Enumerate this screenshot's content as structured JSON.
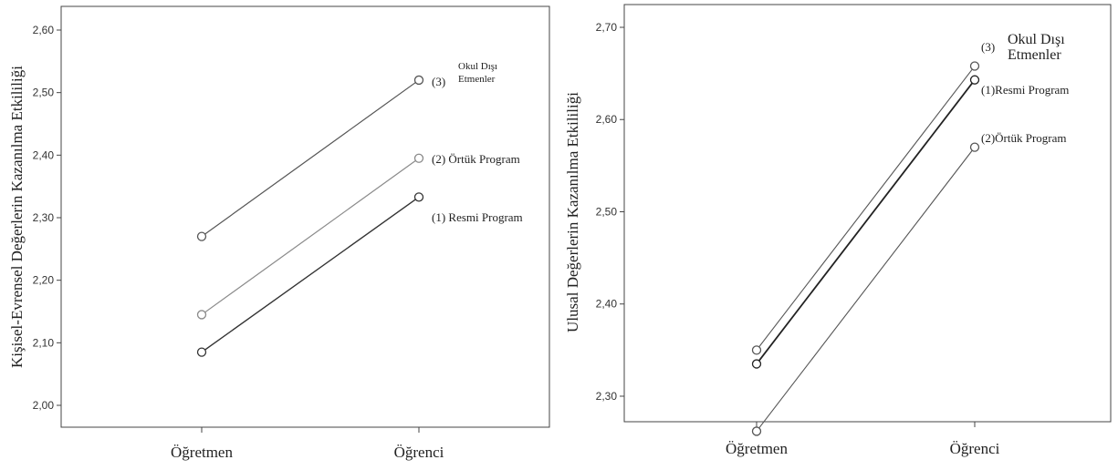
{
  "chart_data": [
    {
      "type": "line",
      "title": "",
      "xlabel": "",
      "ylabel": "Kişisel-Evrensel Değerlerin Kazanılma Etkililiği",
      "categories": [
        "Öğretmen",
        "Öğrenci"
      ],
      "ylim": [
        2.0,
        2.6
      ],
      "yticks": [
        "2,00",
        "2,10",
        "2,20",
        "2,30",
        "2,40",
        "2,50",
        "2,60"
      ],
      "yticks_values": [
        2.0,
        2.1,
        2.2,
        2.3,
        2.4,
        2.5,
        2.6
      ],
      "grid": false,
      "series": [
        {
          "name": "(3) Okul Dışı Etmenler",
          "values": [
            2.27,
            2.52
          ],
          "color": "#555555"
        },
        {
          "name": "(2) Örtük Program",
          "values": [
            2.145,
            2.395
          ],
          "color": "#8a8a8a"
        },
        {
          "name": "(1) Resmi Program",
          "values": [
            2.085,
            2.333
          ],
          "color": "#333333"
        }
      ]
    },
    {
      "type": "line",
      "title": "",
      "xlabel": "",
      "ylabel": "Ulusal Değerlerin Kazanılma Etkililiği",
      "categories": [
        "Öğretmen",
        "Öğrenci"
      ],
      "ylim": [
        2.25,
        2.7
      ],
      "yticks": [
        "2,30",
        "2,40",
        "2,50",
        "2,60",
        "2,70"
      ],
      "yticks_values": [
        2.3,
        2.4,
        2.5,
        2.6,
        2.7
      ],
      "grid": false,
      "series": [
        {
          "name": "(3) Okul Dışı Etmenler",
          "values": [
            2.35,
            2.658
          ],
          "color": "#555555"
        },
        {
          "name": "(1)Resmi Program",
          "values": [
            2.335,
            2.643
          ],
          "color": "#222222"
        },
        {
          "name": "(2)Örtük Program",
          "values": [
            2.262,
            2.57
          ],
          "color": "#555555"
        }
      ]
    }
  ],
  "labels": {
    "left": {
      "okul_num": "(3)",
      "okul_line1": "Okul Dışı",
      "okul_line2": "Etmenler",
      "ortuk": "(2) Örtük Program",
      "resmi": "(1) Resmi Program"
    },
    "right": {
      "okul_num": "(3)",
      "okul_line1": "Okul Dışı",
      "okul_line2": "Etmenler",
      "resmi": "(1)Resmi Program",
      "ortuk": "(2)Örtük Program"
    }
  }
}
